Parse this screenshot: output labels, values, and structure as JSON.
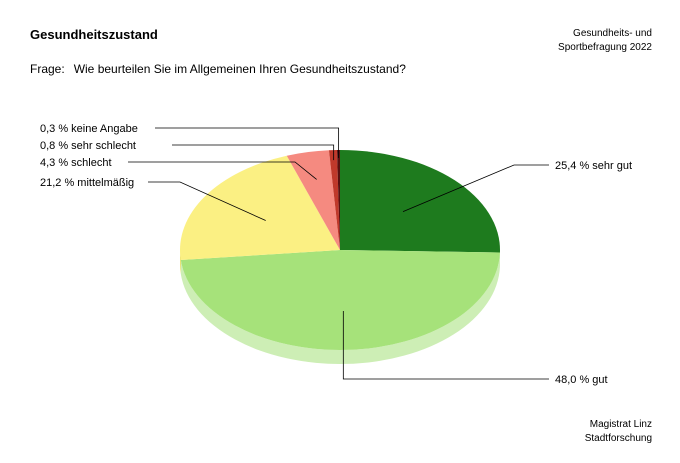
{
  "header": {
    "title": "Gesundheitszustand",
    "survey_line1": "Gesundheits- und",
    "survey_line2": "Sportbefragung 2022"
  },
  "question": {
    "prefix": "Frage:",
    "text": "Wie beurteilen Sie im Allgemeinen Ihren Gesundheitszustand?"
  },
  "footer": {
    "line1": "Magistrat Linz",
    "line2": "Stadtforschung"
  },
  "chart_data": {
    "type": "pie",
    "title": "Gesundheitszustand",
    "slices": [
      {
        "label": "sehr gut",
        "value": 25.4,
        "display": "25,4 %",
        "color": "#1e7b1e",
        "side_color": "#155d15"
      },
      {
        "label": "gut",
        "value": 48.0,
        "display": "48,0 %",
        "color": "#a6e27a",
        "side_color": "#cdeeb5"
      },
      {
        "label": "mittelmäßig",
        "value": 21.2,
        "display": "21,2 %",
        "color": "#fbf083",
        "side_color": "#e9dc5f"
      },
      {
        "label": "schlecht",
        "value": 4.3,
        "display": "4,3 %",
        "color": "#f58a80",
        "side_color": "#d76a60"
      },
      {
        "label": "sehr schlecht",
        "value": 0.8,
        "display": "0,8 %",
        "color": "#c0392b",
        "side_color": "#962d22"
      },
      {
        "label": "keine Angabe",
        "value": 0.3,
        "display": "0,3 %",
        "color": "#5a1010",
        "side_color": "#3d0a0a"
      }
    ]
  }
}
